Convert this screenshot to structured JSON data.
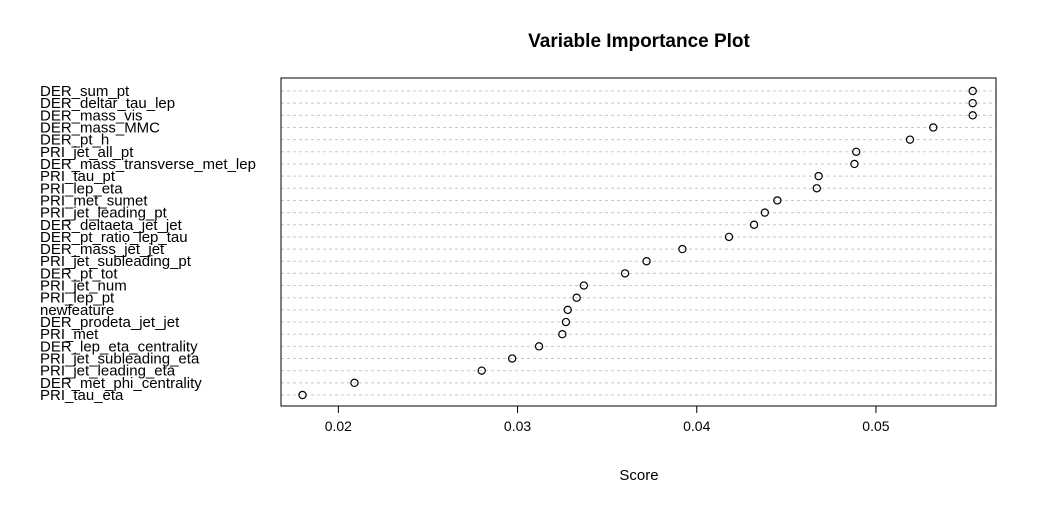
{
  "chart_data": {
    "type": "scatter",
    "title": "Variable Importance Plot",
    "xlabel": "Score",
    "ylabel": "",
    "xlim": [
      0.0168,
      0.0567
    ],
    "xticks": [
      0.02,
      0.03,
      0.04,
      0.05
    ],
    "xtick_labels": [
      "0.02",
      "0.03",
      "0.04",
      "0.05"
    ],
    "grid": true,
    "categories": [
      "DER_sum_pt",
      "DER_deltar_tau_lep",
      "DER_mass_vis",
      "DER_mass_MMC",
      "DER_pt_h",
      "PRI_jet_all_pt",
      "DER_mass_transverse_met_lep",
      "PRI_tau_pt",
      "PRI_lep_eta",
      "PRI_met_sumet",
      "PRI_jet_leading_pt",
      "DER_deltaeta_jet_jet",
      "DER_pt_ratio_lep_tau",
      "DER_mass_jet_jet",
      "PRI_jet_subleading_pt",
      "DER_pt_tot",
      "PRI_jet_num",
      "PRI_lep_pt",
      "newfeature",
      "DER_prodeta_jet_jet",
      "PRI_met",
      "DER_lep_eta_centrality",
      "PRI_jet_subleading_eta",
      "PRI_jet_leading_eta",
      "DER_met_phi_centrality",
      "PRI_tau_eta"
    ],
    "values": [
      0.0554,
      0.0554,
      0.0554,
      0.0532,
      0.0519,
      0.0489,
      0.0488,
      0.0468,
      0.0467,
      0.0445,
      0.0438,
      0.0432,
      0.0418,
      0.0392,
      0.0372,
      0.036,
      0.0337,
      0.0333,
      0.0328,
      0.0327,
      0.0325,
      0.0312,
      0.0297,
      0.028,
      0.0209,
      0.018
    ]
  }
}
